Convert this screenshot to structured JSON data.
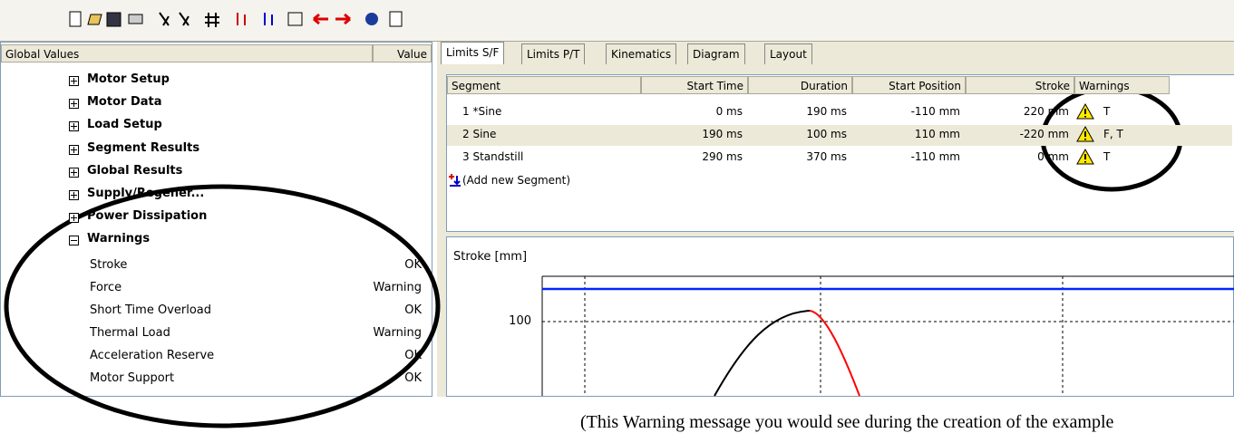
{
  "left_panel": {
    "header": [
      "Global Values",
      "Value"
    ],
    "tree": [
      "Motor Setup",
      "Motor Data",
      "Load Setup",
      "Segment Results",
      "Global Results",
      "Supply/Regener...",
      "Power Dissipation"
    ],
    "warnings": {
      "label": "Warnings",
      "items": [
        {
          "name": "Stroke",
          "value": "OK"
        },
        {
          "name": "Force",
          "value": "Warning"
        },
        {
          "name": "Short Time Overload",
          "value": "OK"
        },
        {
          "name": "Thermal Load",
          "value": "Warning"
        },
        {
          "name": "Acceleration Reserve",
          "value": "OK"
        },
        {
          "name": "Motor Support",
          "value": "OK"
        }
      ]
    }
  },
  "tabs": [
    "Limits S/F",
    "Limits P/T",
    "Kinematics",
    "Diagram",
    "Layout"
  ],
  "segments_table": {
    "columns": [
      "Segment",
      "Start Time",
      "Duration",
      "Start Position",
      "Stroke",
      "Warnings"
    ],
    "rows": [
      [
        "1  *Sine",
        "0 ms",
        "190 ms",
        "-110 mm",
        "220 mm",
        "T"
      ],
      [
        "2  Sine",
        "190 ms",
        "100 ms",
        "110 mm",
        "-220 mm",
        "F, T"
      ],
      [
        "3  Standstill",
        "290 ms",
        "370 ms",
        "-110 mm",
        "0 mm",
        "T"
      ]
    ],
    "add_row": "(Add new Segment)"
  },
  "diagram": {
    "y_label": "Stroke [mm]",
    "y_tick": "100"
  },
  "caption": "(This Warning message you would see during the creation of the example"
}
